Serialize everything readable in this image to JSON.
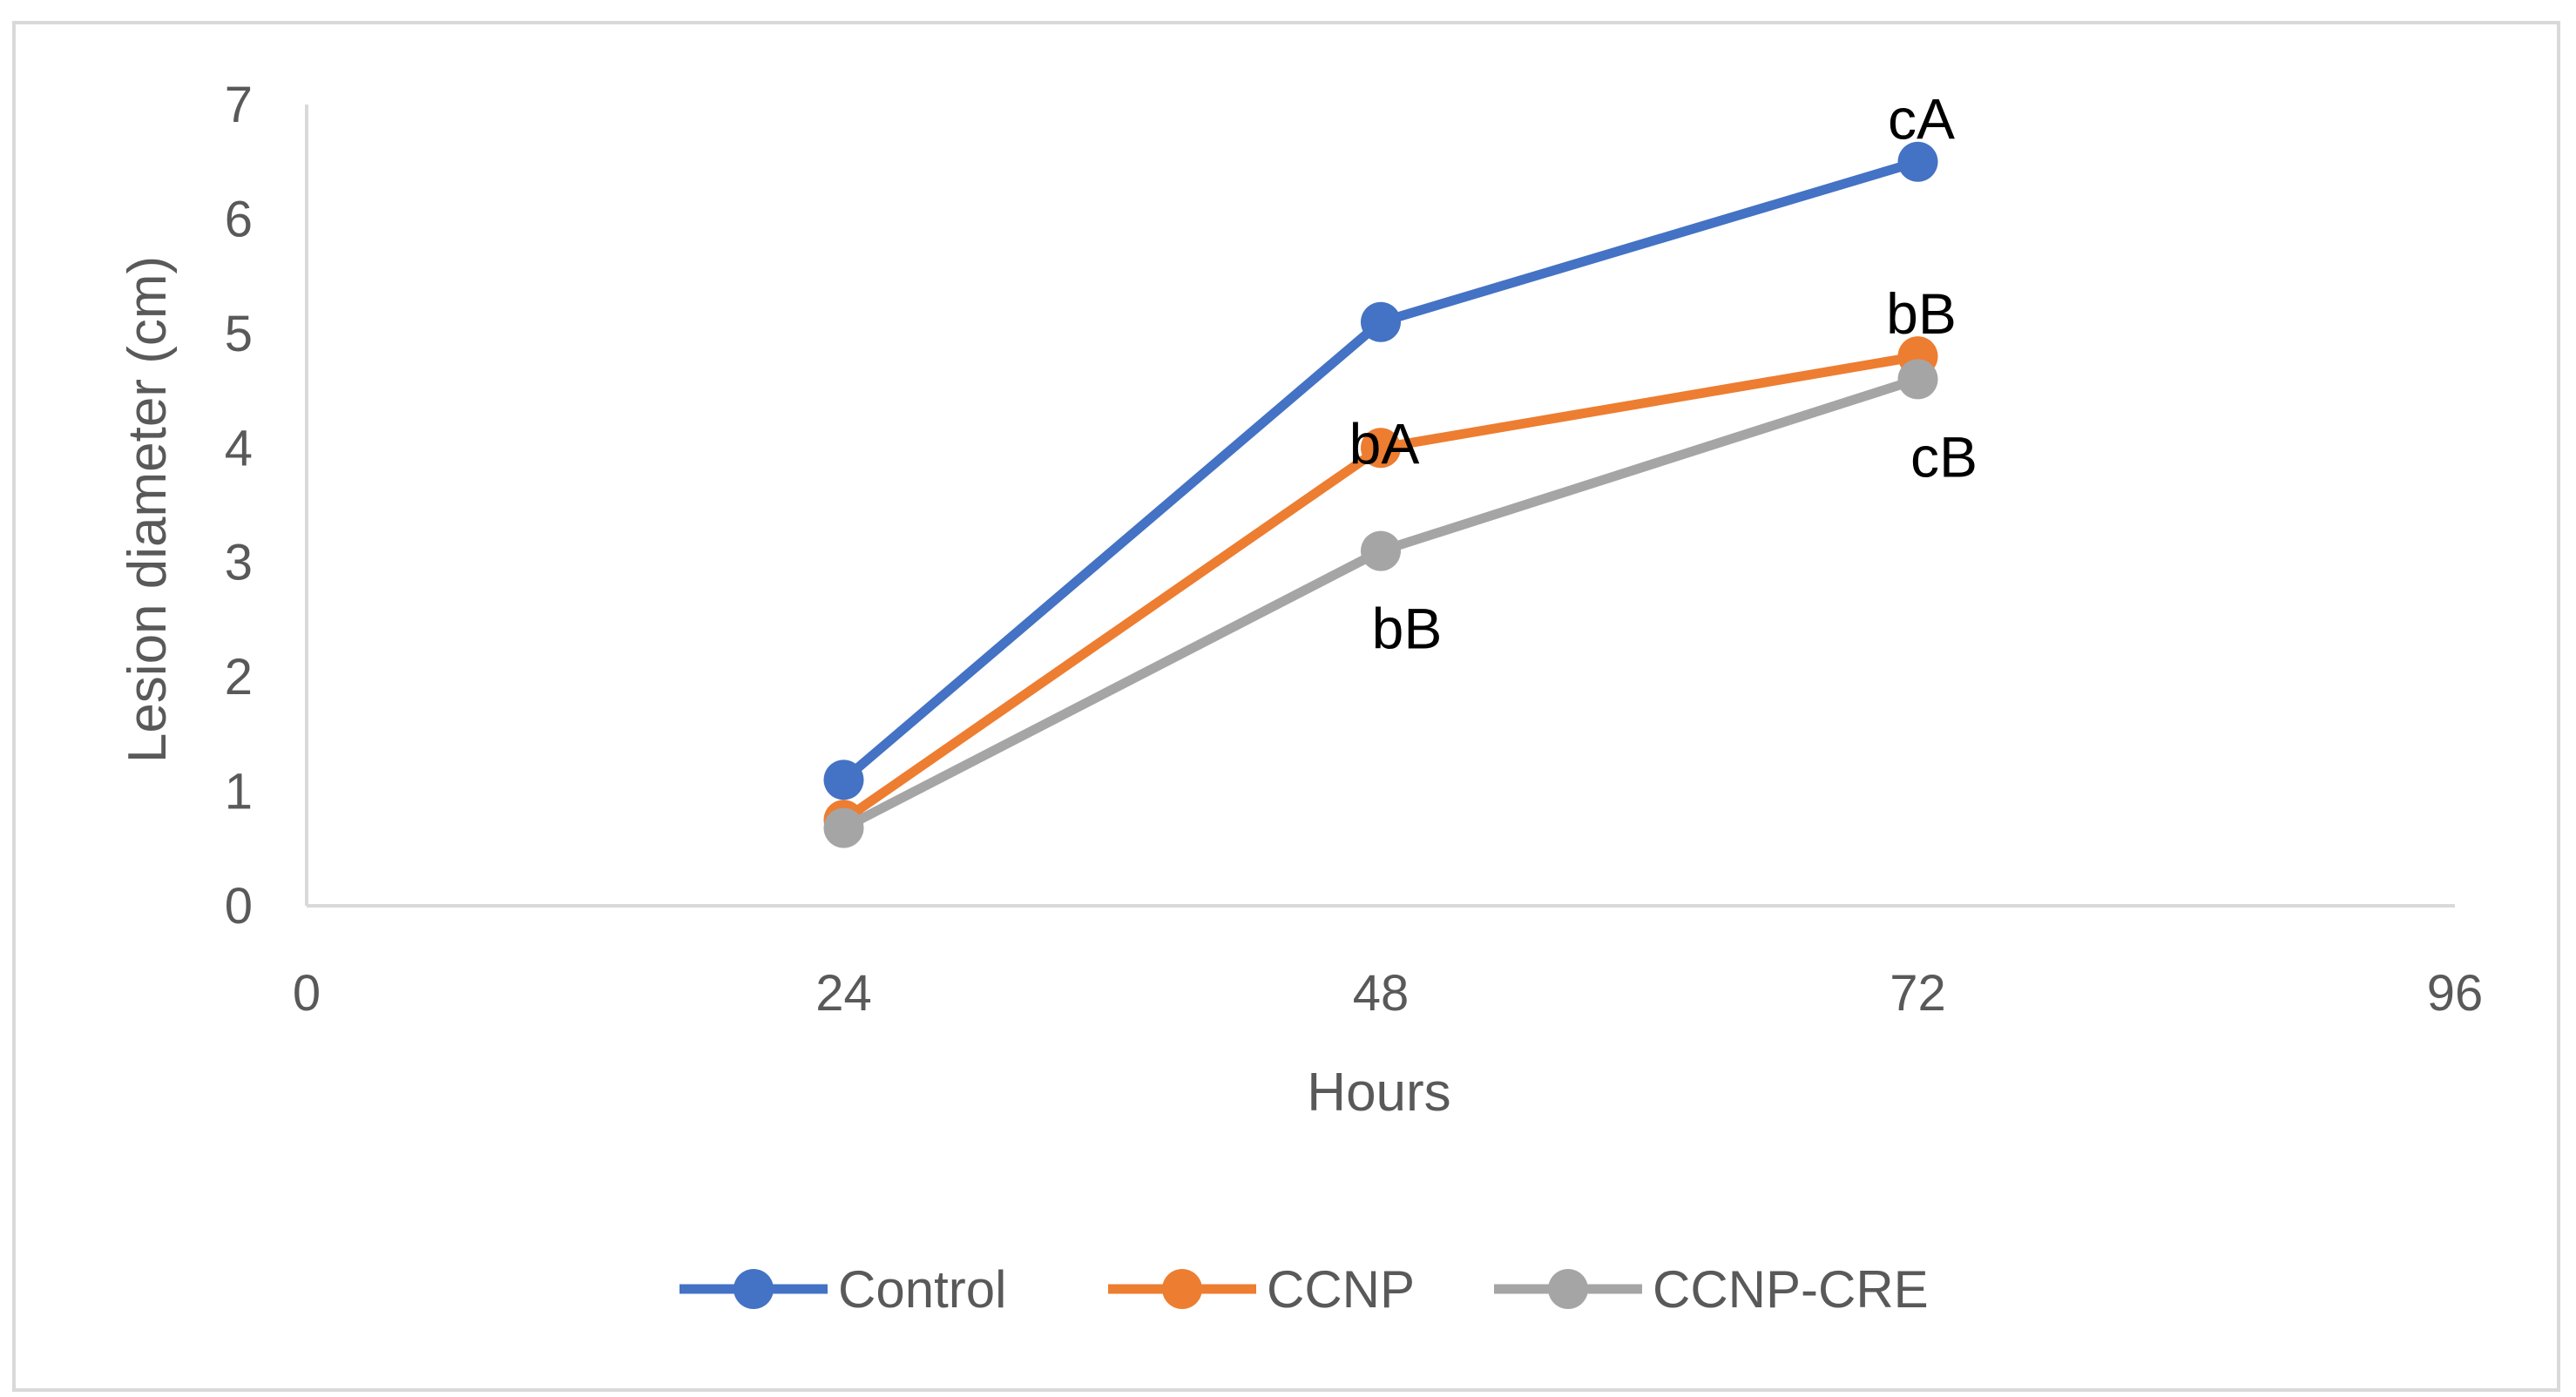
{
  "chart_data": {
    "type": "line",
    "xlabel": "Hours",
    "ylabel": "Lesion diameter  (cm)",
    "xlim": [
      0,
      96
    ],
    "ylim": [
      0,
      7
    ],
    "x_ticks": [
      0,
      24,
      48,
      72,
      96
    ],
    "y_ticks": [
      0,
      1,
      2,
      3,
      4,
      5,
      6,
      7
    ],
    "grid": false,
    "legend_position": "bottom",
    "x": [
      24,
      48,
      72
    ],
    "series": [
      {
        "name": "Control",
        "color": "#4472c4",
        "values": [
          1.1,
          5.1,
          6.5
        ]
      },
      {
        "name": "CCNP",
        "color": "#ed7d31",
        "values": [
          0.75,
          4.0,
          4.8
        ]
      },
      {
        "name": "CCNP-CRE",
        "color": "#a5a5a5",
        "values": [
          0.68,
          3.1,
          4.6
        ]
      }
    ],
    "annotations": [
      {
        "text": "cA",
        "x": 72,
        "y": 6.5,
        "series": "Control",
        "placement": "above"
      },
      {
        "text": "bA",
        "x": 48,
        "y": 4.0,
        "series": "CCNP",
        "placement": "on"
      },
      {
        "text": "bB",
        "x": 72,
        "y": 4.8,
        "series": "CCNP",
        "placement": "above"
      },
      {
        "text": "bB",
        "x": 48,
        "y": 3.1,
        "series": "CCNP-CRE",
        "placement": "below"
      },
      {
        "text": "cB",
        "x": 72,
        "y": 4.6,
        "series": "CCNP-CRE",
        "placement": "below"
      }
    ],
    "axis_color": "#d9d9d9",
    "text_color": "#595959"
  }
}
